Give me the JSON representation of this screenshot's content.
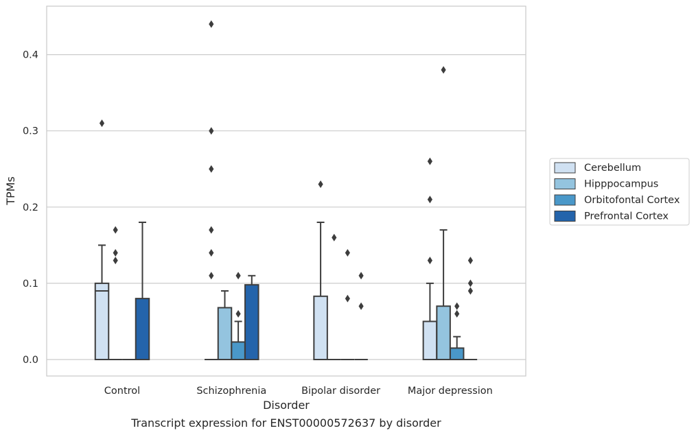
{
  "chart_data": {
    "type": "box",
    "xlabel": "Disorder",
    "ylabel": "TPMs",
    "caption": "Transcript expression for ENST00000572637 by disorder",
    "ylim": [
      -0.022,
      0.465
    ],
    "yticks": [
      "0.0",
      "0.1",
      "0.2",
      "0.3",
      "0.4"
    ],
    "ytick_values": [
      0.0,
      0.1,
      0.2,
      0.3,
      0.4
    ],
    "grid": "horizontal",
    "legend_position": "right",
    "categories": [
      "Control",
      "Schizophrenia",
      "Bipolar disorder",
      "Major depression"
    ],
    "series": [
      {
        "name": "Cerebellum",
        "color": "#d0e1f2"
      },
      {
        "name": "Hipppocampus",
        "color": "#94c4df"
      },
      {
        "name": "Orbitofontal Cortex",
        "color": "#4a98c9"
      },
      {
        "name": "Prefrontal Cortex",
        "color": "#2464ab"
      }
    ],
    "boxes": [
      [
        {
          "q1": 0.0,
          "median": 0.09,
          "q3": 0.1,
          "whisker_low": 0.0,
          "whisker_high": 0.15,
          "outliers": [
            0.31
          ]
        },
        {
          "q1": 0.0,
          "median": 0.0,
          "q3": 0.0,
          "whisker_low": 0.0,
          "whisker_high": 0.0,
          "outliers": [
            0.17,
            0.14,
            0.13
          ]
        },
        {
          "q1": 0.0,
          "median": 0.0,
          "q3": 0.0,
          "whisker_low": 0.0,
          "whisker_high": 0.0,
          "outliers": []
        },
        {
          "q1": 0.0,
          "median": 0.0,
          "q3": 0.08,
          "whisker_low": 0.0,
          "whisker_high": 0.18,
          "outliers": []
        }
      ],
      [
        {
          "q1": 0.0,
          "median": 0.0,
          "q3": 0.0,
          "whisker_low": 0.0,
          "whisker_high": 0.0,
          "outliers": [
            0.44,
            0.3,
            0.25,
            0.17,
            0.14,
            0.11
          ]
        },
        {
          "q1": 0.0,
          "median": 0.0,
          "q3": 0.068,
          "whisker_low": 0.0,
          "whisker_high": 0.09,
          "outliers": []
        },
        {
          "q1": 0.0,
          "median": 0.0,
          "q3": 0.023,
          "whisker_low": 0.0,
          "whisker_high": 0.05,
          "outliers": [
            0.11,
            0.06
          ]
        },
        {
          "q1": 0.0,
          "median": 0.0,
          "q3": 0.098,
          "whisker_low": 0.0,
          "whisker_high": 0.11,
          "outliers": []
        }
      ],
      [
        {
          "q1": 0.0,
          "median": 0.0,
          "q3": 0.083,
          "whisker_low": 0.0,
          "whisker_high": 0.18,
          "outliers": [
            0.23
          ]
        },
        {
          "q1": 0.0,
          "median": 0.0,
          "q3": 0.0,
          "whisker_low": 0.0,
          "whisker_high": 0.0,
          "outliers": [
            0.16
          ]
        },
        {
          "q1": 0.0,
          "median": 0.0,
          "q3": 0.0,
          "whisker_low": 0.0,
          "whisker_high": 0.0,
          "outliers": [
            0.14,
            0.08
          ]
        },
        {
          "q1": 0.0,
          "median": 0.0,
          "q3": 0.0,
          "whisker_low": 0.0,
          "whisker_high": 0.0,
          "outliers": [
            0.11,
            0.07
          ]
        }
      ],
      [
        {
          "q1": 0.0,
          "median": 0.0,
          "q3": 0.05,
          "whisker_low": 0.0,
          "whisker_high": 0.1,
          "outliers": [
            0.26,
            0.21,
            0.13
          ]
        },
        {
          "q1": 0.0,
          "median": 0.0,
          "q3": 0.07,
          "whisker_low": 0.0,
          "whisker_high": 0.17,
          "outliers": [
            0.38
          ]
        },
        {
          "q1": 0.0,
          "median": 0.0,
          "q3": 0.015,
          "whisker_low": 0.0,
          "whisker_high": 0.03,
          "outliers": [
            0.07,
            0.06
          ]
        },
        {
          "q1": 0.0,
          "median": 0.0,
          "q3": 0.0,
          "whisker_low": 0.0,
          "whisker_high": 0.0,
          "outliers": [
            0.13,
            0.1,
            0.09
          ]
        }
      ]
    ]
  }
}
